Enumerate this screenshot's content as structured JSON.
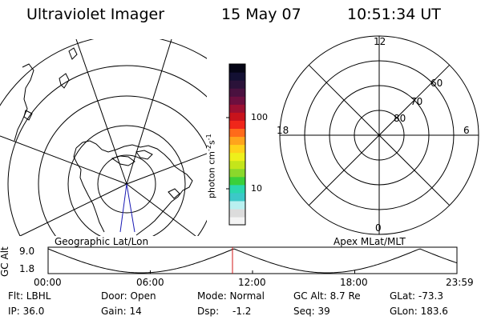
{
  "header": {
    "title": "Ultraviolet Imager",
    "date": "15 May 07",
    "time": "10:51:34 UT"
  },
  "geo_panel": {
    "label": "Geographic Lat/Lon"
  },
  "apex_panel": {
    "label": "Apex MLat/MLT",
    "mlt_labels": [
      "12",
      "18",
      "6",
      "0"
    ],
    "lat_labels": [
      "60",
      "70",
      "80"
    ]
  },
  "colorbar": {
    "unit_label": "photon cm",
    "unit_sup1": "-2",
    "unit_mid": "s",
    "unit_sup2": "-1",
    "tick_labels": [
      "100",
      "10"
    ],
    "colors": [
      "#f4f4f4",
      "#dcdcdc",
      "#b9f0f0",
      "#3cc8c8",
      "#2bd7ae",
      "#3ad03a",
      "#8ad82b",
      "#c4e51a",
      "#eef01b",
      "#ffd21a",
      "#ffa41c",
      "#ff6a1a",
      "#f0261a",
      "#c8131c",
      "#9c1032",
      "#6d0f3f",
      "#4a113f",
      "#2a1239",
      "#131033",
      "#050515"
    ]
  },
  "altitude_plot": {
    "ylabel": "GC Alt",
    "y_ticks": [
      "9.0",
      "1.8"
    ],
    "x_ticks": [
      "00:00",
      "06:00",
      "12:00",
      "18:00",
      "23:59"
    ],
    "current_time_marker": "10:51:34"
  },
  "status": {
    "flt": "Flt: LBHL",
    "ip": "IP: 36.0",
    "door": "Door: Open",
    "gain": "Gain: 14",
    "mode": "Mode: Normal",
    "dsp": "Dsp:",
    "dsp_value": "-1.2",
    "gc_alt": "GC Alt: 8.7 Re",
    "seq": "Seq: 39",
    "glat": "GLat: -73.3",
    "glon": "GLon: 183.6"
  }
}
